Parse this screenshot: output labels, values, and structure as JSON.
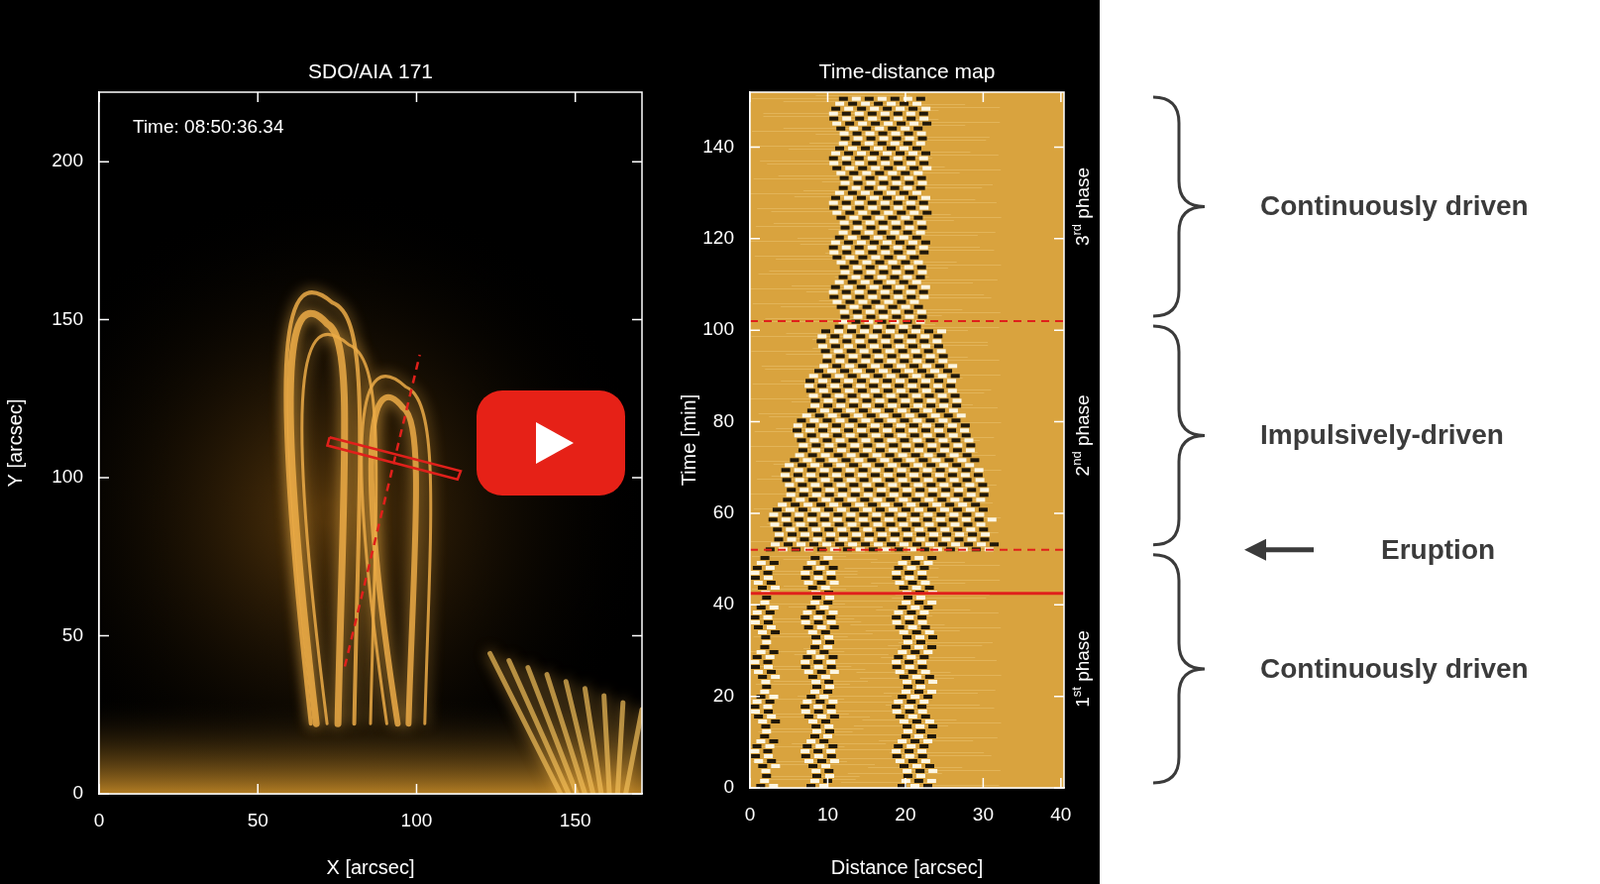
{
  "chart_data": [
    {
      "type": "image",
      "title": "SDO/AIA 171",
      "annotation": "Time: 08:50:36.34",
      "x_label": "X [arcsec]",
      "y_label": "Y [arcsec]",
      "xlim": [
        0,
        171
      ],
      "ylim": [
        0,
        222
      ],
      "xticks": [
        0,
        50,
        100,
        150
      ],
      "yticks": [
        0,
        50,
        100,
        150,
        200
      ],
      "series": [
        {
          "type": "line",
          "color": "#e0201b",
          "line_style": "dashed",
          "x": [
            77.4,
            101
          ],
          "y": [
            40.3,
            138.9
          ]
        },
        {
          "type": "line",
          "color": "#e0201b",
          "line_style": "solid",
          "x": [
            72.6,
            113.9,
            112.9,
            71.9,
            72.6
          ],
          "y": [
            112.8,
            102.1,
            99.5,
            110.2,
            112.8
          ]
        }
      ]
    },
    {
      "type": "time_distance_map",
      "title": "Time-distance map",
      "x_label": "Distance [arcsec]",
      "y_label": "Time [min]",
      "xlim": [
        0,
        40.4
      ],
      "ylim": [
        0,
        152
      ],
      "xticks": [
        0,
        10,
        20,
        30,
        40
      ],
      "yticks": [
        0,
        20,
        40,
        60,
        80,
        100,
        120,
        140
      ],
      "hlines": [
        {
          "value": 102,
          "color": "#e0201b",
          "line_style": "dashed"
        },
        {
          "value": 52,
          "color": "#e0201b",
          "line_style": "dashed"
        },
        {
          "value": 42.5,
          "color": "#e0201b",
          "line_style": "solid"
        }
      ],
      "phases": [
        {
          "label": "1st phase",
          "range": [
            0,
            52
          ],
          "driver": "Continuously driven"
        },
        {
          "label": "2nd phase",
          "range": [
            52,
            102
          ],
          "driver": "Impulsively-driven"
        },
        {
          "label": "3rd phase",
          "range": [
            102,
            152
          ],
          "driver": "Continuously driven"
        }
      ],
      "events": [
        {
          "label": "Eruption",
          "time": 52
        }
      ]
    }
  ]
}
